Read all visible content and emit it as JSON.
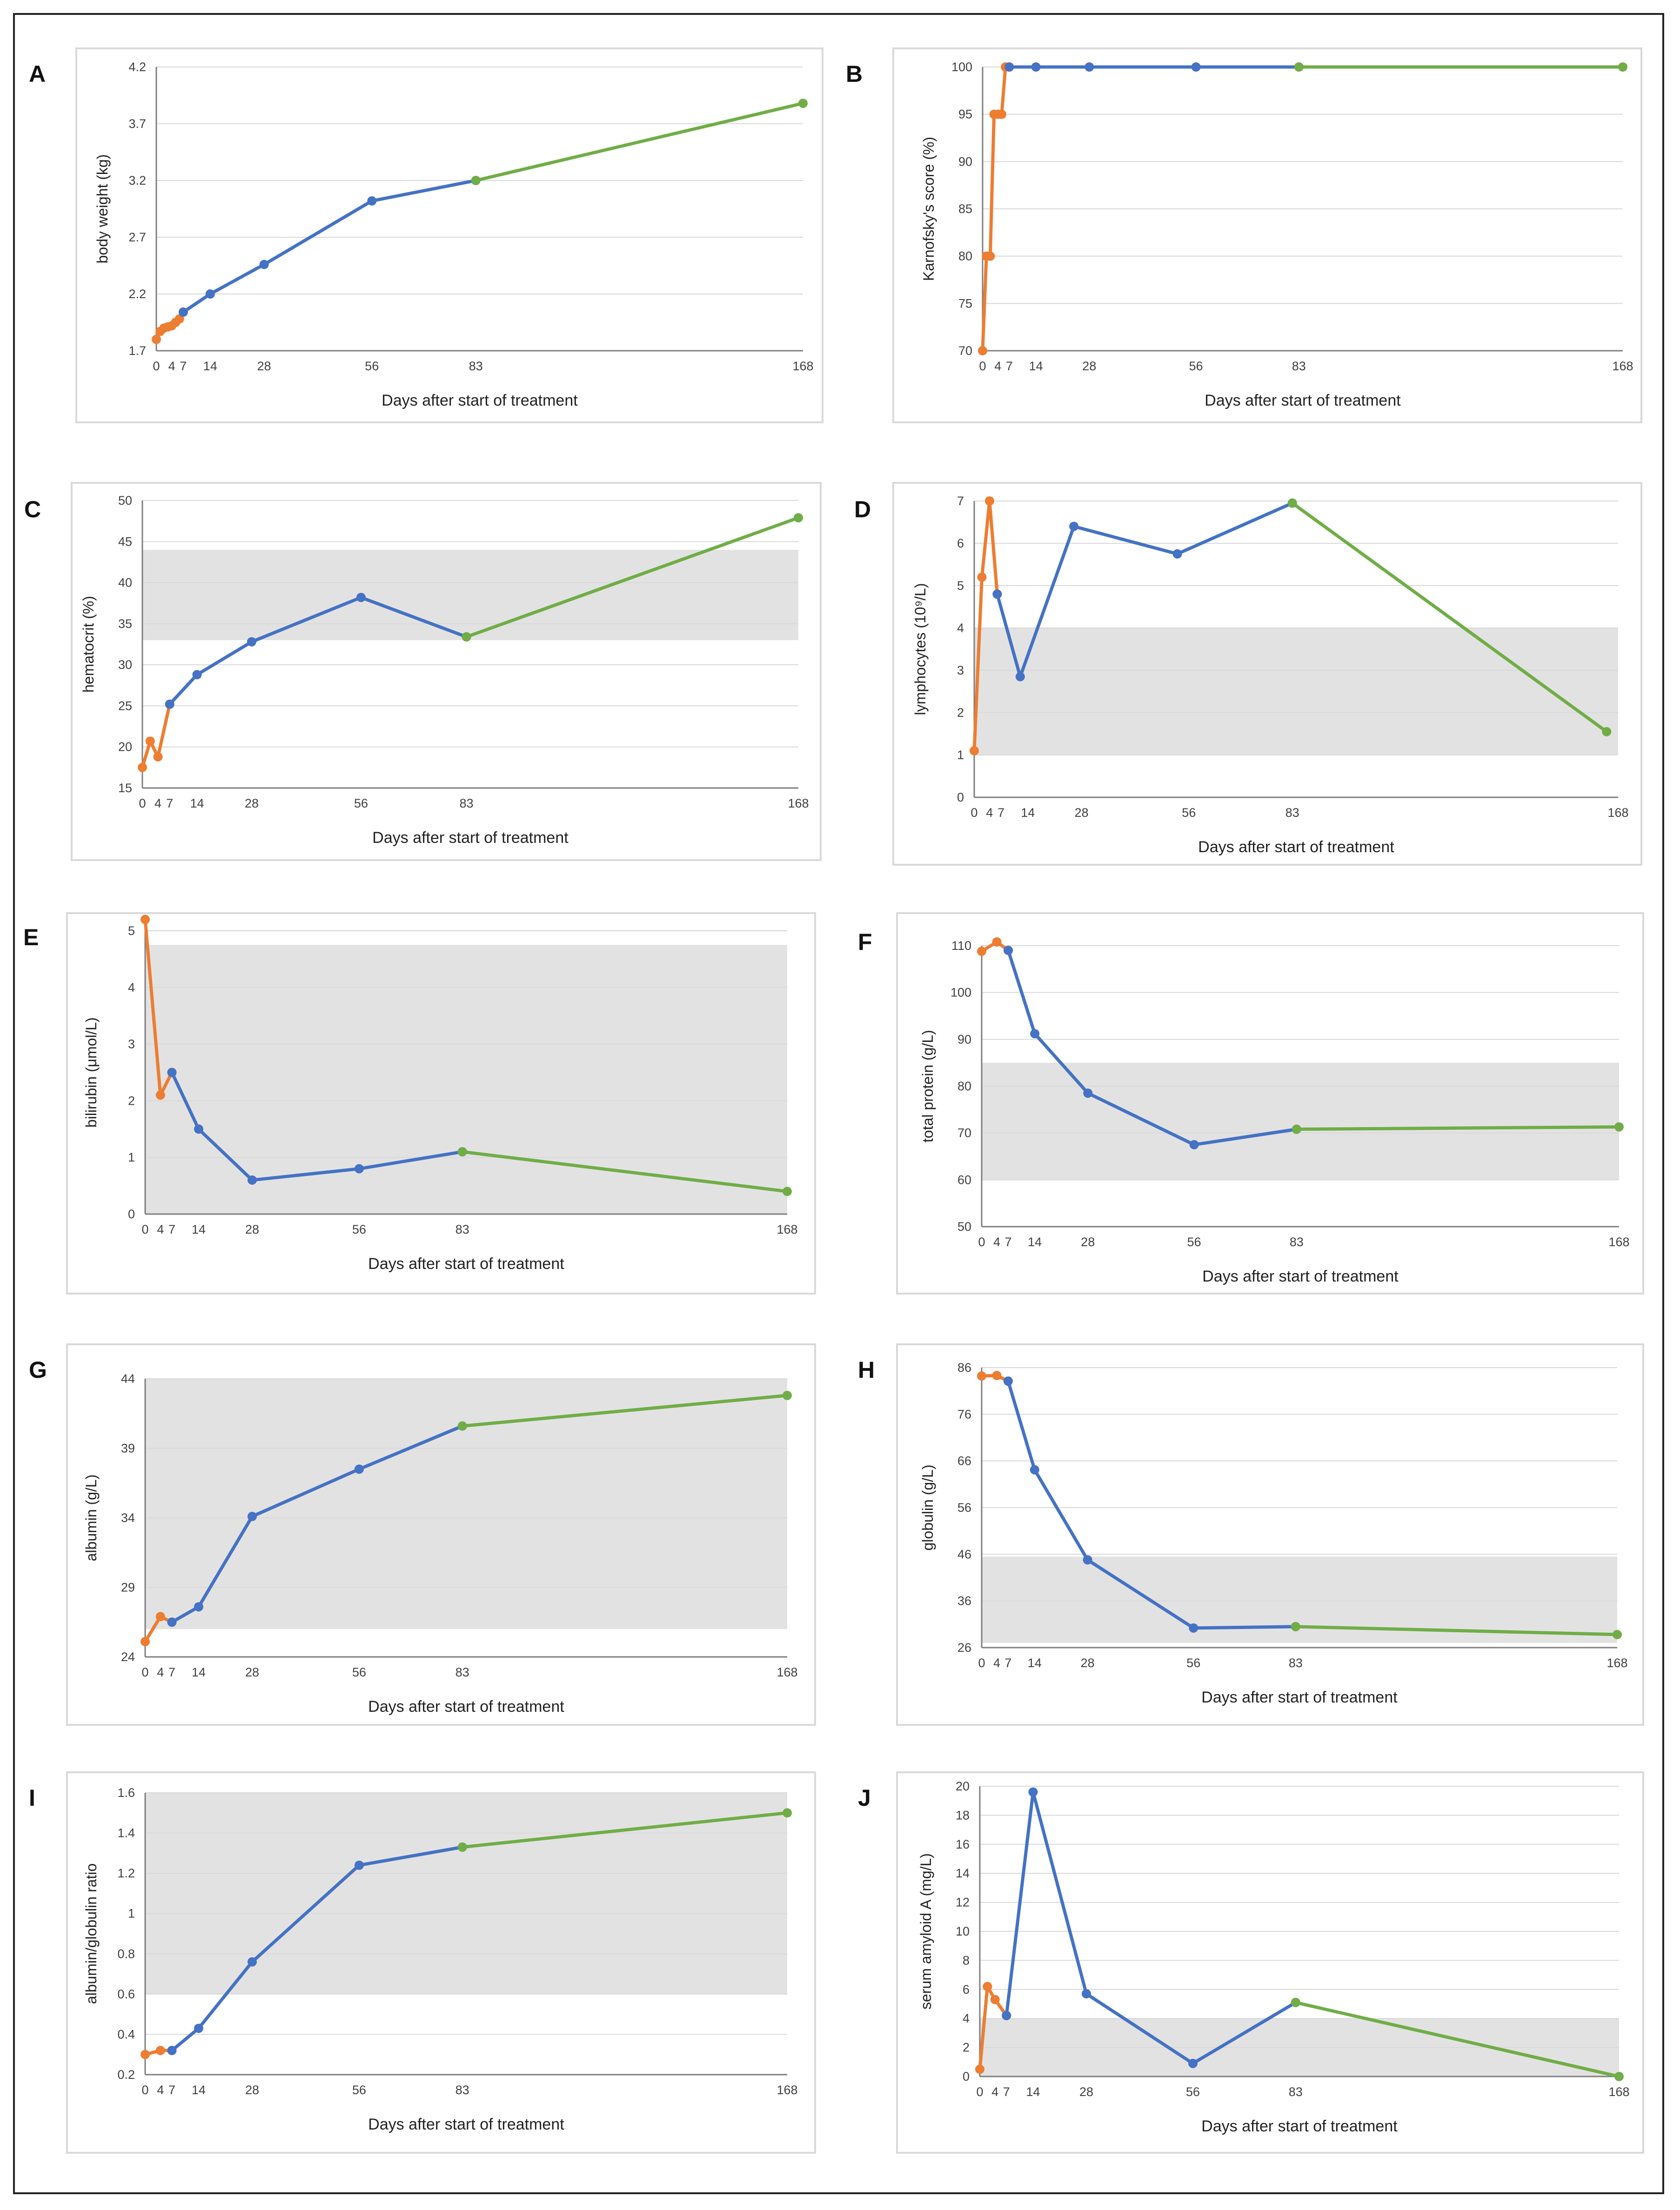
{
  "colors": {
    "early": "#ED7D31",
    "mid": "#4472C4",
    "late": "#70AD47",
    "band": "#E3E2E3",
    "grid": "#D9D9D9"
  },
  "chart_data": [
    {
      "id": "A",
      "type": "line",
      "letter": "A",
      "ylabel": "body weight (kg)",
      "xlabel": "Days after start of treatment",
      "ylim": [
        1.7,
        4.2
      ],
      "yticks": [
        "1.7",
        "2.2",
        "2.7",
        "3.2",
        "3.7",
        "4.2"
      ],
      "xtick_values": [
        0,
        4,
        7,
        14,
        28,
        56,
        83,
        168
      ],
      "xtick_labels": [
        "0",
        "4",
        "7",
        "14",
        "28",
        "56",
        "83",
        "168"
      ],
      "xmax": 168,
      "reference_range": null,
      "series": [
        {
          "name": "early",
          "color": "early",
          "x": [
            0,
            1,
            2,
            3,
            4,
            5,
            6,
            7
          ],
          "y": [
            1.8,
            1.87,
            1.9,
            1.91,
            1.92,
            1.95,
            1.98,
            2.04
          ]
        },
        {
          "name": "mid",
          "color": "mid",
          "x": [
            7,
            14,
            28,
            56,
            83
          ],
          "y": [
            2.04,
            2.2,
            2.46,
            3.02,
            3.2
          ]
        },
        {
          "name": "late",
          "color": "late",
          "x": [
            83,
            168
          ],
          "y": [
            3.2,
            3.88
          ]
        }
      ]
    },
    {
      "id": "B",
      "type": "line",
      "letter": "B",
      "ylabel": "Karnofsky's score (%)",
      "xlabel": "Days after start of treatment",
      "ylim": [
        70,
        100
      ],
      "yticks": [
        "70",
        "75",
        "80",
        "85",
        "90",
        "95",
        "100"
      ],
      "xtick_values": [
        0,
        4,
        7,
        14,
        28,
        56,
        83,
        168
      ],
      "xtick_labels": [
        "0",
        "4",
        "7",
        "14",
        "28",
        "56",
        "83",
        "168"
      ],
      "xmax": 168,
      "reference_range": null,
      "series": [
        {
          "name": "early",
          "color": "early",
          "x": [
            0,
            1,
            2,
            3,
            4,
            5,
            6,
            7
          ],
          "y": [
            70,
            80,
            80,
            95,
            95,
            95,
            100,
            100
          ]
        },
        {
          "name": "mid",
          "color": "mid",
          "x": [
            7,
            14,
            28,
            56,
            83
          ],
          "y": [
            100,
            100,
            100,
            100,
            100
          ]
        },
        {
          "name": "late",
          "color": "late",
          "x": [
            83,
            168
          ],
          "y": [
            100,
            100
          ]
        }
      ]
    },
    {
      "id": "C",
      "type": "line",
      "letter": "C",
      "ylabel": "hematocrit (%)",
      "xlabel": "Days after start of treatment",
      "ylim": [
        15,
        50
      ],
      "yticks": [
        "15",
        "20",
        "25",
        "30",
        "35",
        "40",
        "45",
        "50"
      ],
      "xtick_values": [
        0,
        4,
        7,
        14,
        28,
        56,
        83,
        168
      ],
      "xtick_labels": [
        "0",
        "4",
        "7",
        "14",
        "28",
        "56",
        "83",
        "168"
      ],
      "xmax": 168,
      "reference_range": [
        33,
        44
      ],
      "series": [
        {
          "name": "early",
          "color": "early",
          "x": [
            0,
            2,
            4,
            7
          ],
          "y": [
            17.5,
            20.7,
            18.8,
            25.2
          ]
        },
        {
          "name": "mid",
          "color": "mid",
          "x": [
            7,
            14,
            28,
            56,
            83
          ],
          "y": [
            25.2,
            28.8,
            32.8,
            38.2,
            33.4
          ]
        },
        {
          "name": "late",
          "color": "late",
          "x": [
            83,
            168
          ],
          "y": [
            33.4,
            47.9
          ]
        }
      ]
    },
    {
      "id": "D",
      "type": "line",
      "letter": "D",
      "ylabel": "lymphocytes (10⁹/L)",
      "xlabel": "Days after start of treatment",
      "ylim": [
        0,
        7
      ],
      "yticks": [
        "0",
        "1",
        "2",
        "3",
        "4",
        "5",
        "6",
        "7"
      ],
      "xtick_values": [
        0,
        4,
        7,
        14,
        28,
        56,
        83,
        168
      ],
      "xtick_labels": [
        "0",
        "4",
        "7",
        "14",
        "28",
        "56",
        "83",
        "168"
      ],
      "xmax": 168,
      "reference_range": [
        1,
        4
      ],
      "series": [
        {
          "name": "early",
          "color": "early",
          "x": [
            0,
            2,
            4,
            6
          ],
          "y": [
            1.1,
            5.2,
            7.0,
            4.8
          ]
        },
        {
          "name": "mid",
          "color": "mid",
          "x": [
            6,
            12,
            26,
            53,
            83
          ],
          "y": [
            4.8,
            2.85,
            6.4,
            5.75,
            6.95
          ]
        },
        {
          "name": "late",
          "color": "late",
          "x": [
            83,
            165
          ],
          "y": [
            6.95,
            1.55
          ]
        }
      ]
    },
    {
      "id": "E",
      "type": "line",
      "letter": "E",
      "ylabel": "bilirubin (μmol/L)",
      "xlabel": "Days after start of treatment",
      "ylim": [
        0,
        5
      ],
      "yticks": [
        "0",
        "1",
        "2",
        "3",
        "4",
        "5"
      ],
      "xtick_values": [
        0,
        4,
        7,
        14,
        28,
        56,
        83,
        168
      ],
      "xtick_labels": [
        "0",
        "4",
        "7",
        "14",
        "28",
        "56",
        "83",
        "168"
      ],
      "xmax": 168,
      "reference_range": [
        0,
        4.75
      ],
      "series": [
        {
          "name": "early",
          "color": "early",
          "x": [
            0,
            4,
            7
          ],
          "y": [
            5.2,
            2.1,
            2.5
          ]
        },
        {
          "name": "mid",
          "color": "mid",
          "x": [
            7,
            14,
            28,
            56,
            83
          ],
          "y": [
            2.5,
            1.5,
            0.6,
            0.8,
            1.1
          ]
        },
        {
          "name": "late",
          "color": "late",
          "x": [
            83,
            168
          ],
          "y": [
            1.1,
            0.4
          ]
        }
      ]
    },
    {
      "id": "F",
      "type": "line",
      "letter": "F",
      "ylabel": "total protein (g/L)",
      "xlabel": "Days after start of treatment",
      "ylim": [
        50,
        110
      ],
      "yticks": [
        "50",
        "60",
        "70",
        "80",
        "90",
        "100",
        "110"
      ],
      "xtick_values": [
        0,
        4,
        7,
        14,
        28,
        56,
        83,
        168
      ],
      "xtick_labels": [
        "0",
        "4",
        "7",
        "14",
        "28",
        "56",
        "83",
        "168"
      ],
      "xmax": 168,
      "reference_range": [
        60,
        85
      ],
      "series": [
        {
          "name": "early",
          "color": "early",
          "x": [
            0,
            4,
            7
          ],
          "y": [
            108.8,
            110.8,
            109
          ]
        },
        {
          "name": "mid",
          "color": "mid",
          "x": [
            7,
            14,
            28,
            56,
            83
          ],
          "y": [
            109,
            91.2,
            78.5,
            67.5,
            70.8
          ]
        },
        {
          "name": "late",
          "color": "late",
          "x": [
            83,
            168
          ],
          "y": [
            70.8,
            71.3
          ]
        }
      ]
    },
    {
      "id": "G",
      "type": "line",
      "letter": "G",
      "ylabel": "albumin (g/L)",
      "xlabel": "Days after start of treatment",
      "ylim": [
        24,
        44
      ],
      "yticks": [
        "24",
        "29",
        "34",
        "39",
        "44"
      ],
      "xtick_values": [
        0,
        4,
        7,
        14,
        28,
        56,
        83,
        168
      ],
      "xtick_labels": [
        "0",
        "4",
        "7",
        "14",
        "28",
        "56",
        "83",
        "168"
      ],
      "xmax": 168,
      "reference_range": [
        26,
        45
      ],
      "series": [
        {
          "name": "early",
          "color": "early",
          "x": [
            0,
            4,
            7
          ],
          "y": [
            25.1,
            26.9,
            26.5
          ]
        },
        {
          "name": "mid",
          "color": "mid",
          "x": [
            7,
            14,
            28,
            56,
            83
          ],
          "y": [
            26.5,
            27.6,
            34.1,
            37.5,
            40.6
          ]
        },
        {
          "name": "late",
          "color": "late",
          "x": [
            83,
            168
          ],
          "y": [
            40.6,
            42.8
          ]
        }
      ]
    },
    {
      "id": "H",
      "type": "line",
      "letter": "H",
      "ylabel": "globulin (g/L)",
      "xlabel": "Days after start of treatment",
      "ylim": [
        26,
        86
      ],
      "yticks": [
        "26",
        "36",
        "46",
        "56",
        "66",
        "76",
        "86"
      ],
      "xtick_values": [
        0,
        4,
        7,
        14,
        28,
        56,
        83,
        168
      ],
      "xtick_labels": [
        "0",
        "4",
        "7",
        "14",
        "28",
        "56",
        "83",
        "168"
      ],
      "xmax": 168,
      "reference_range": [
        27,
        45.5
      ],
      "series": [
        {
          "name": "early",
          "color": "early",
          "x": [
            0,
            4,
            7
          ],
          "y": [
            84.2,
            84.3,
            83.1
          ]
        },
        {
          "name": "mid",
          "color": "mid",
          "x": [
            7,
            14,
            28,
            56,
            83
          ],
          "y": [
            83.1,
            64.1,
            44.8,
            30.2,
            30.5
          ]
        },
        {
          "name": "late",
          "color": "late",
          "x": [
            83,
            168
          ],
          "y": [
            30.5,
            28.8
          ]
        }
      ]
    },
    {
      "id": "I",
      "type": "line",
      "letter": "I",
      "ylabel": "albumin/globulin ratio",
      "xlabel": "Days after start of treatment",
      "ylim": [
        0.2,
        1.6
      ],
      "yticks": [
        "0.2",
        "0.4",
        "0.6",
        "0.8",
        "1",
        "1.2",
        "1.4",
        "1.6"
      ],
      "xtick_values": [
        0,
        4,
        7,
        14,
        28,
        56,
        83,
        168
      ],
      "xtick_labels": [
        "0",
        "4",
        "7",
        "14",
        "28",
        "56",
        "83",
        "168"
      ],
      "xmax": 168,
      "reference_range": [
        0.6,
        1.6
      ],
      "series": [
        {
          "name": "early",
          "color": "early",
          "x": [
            0,
            4,
            7
          ],
          "y": [
            0.3,
            0.32,
            0.32
          ]
        },
        {
          "name": "mid",
          "color": "mid",
          "x": [
            7,
            14,
            28,
            56,
            83
          ],
          "y": [
            0.32,
            0.43,
            0.76,
            1.24,
            1.33
          ]
        },
        {
          "name": "late",
          "color": "late",
          "x": [
            83,
            168
          ],
          "y": [
            1.33,
            1.5
          ]
        }
      ]
    },
    {
      "id": "J",
      "type": "line",
      "letter": "J",
      "ylabel": "serum amyloid A (mg/L)",
      "xlabel": "Days after start of treatment",
      "ylim": [
        0,
        20
      ],
      "yticks": [
        "0",
        "2",
        "4",
        "6",
        "8",
        "10",
        "12",
        "14",
        "16",
        "18",
        "20"
      ],
      "xtick_values": [
        0,
        4,
        7,
        14,
        28,
        56,
        83,
        168
      ],
      "xtick_labels": [
        "0",
        "4",
        "7",
        "14",
        "28",
        "56",
        "83",
        "168"
      ],
      "xmax": 168,
      "reference_range": [
        0,
        4
      ],
      "series": [
        {
          "name": "early",
          "color": "early",
          "x": [
            0,
            2,
            4,
            7
          ],
          "y": [
            0.5,
            6.2,
            5.3,
            4.2
          ]
        },
        {
          "name": "mid",
          "color": "mid",
          "x": [
            7,
            14,
            28,
            56,
            83
          ],
          "y": [
            4.2,
            19.6,
            5.7,
            0.9,
            5.1
          ]
        },
        {
          "name": "late",
          "color": "late",
          "x": [
            83,
            168
          ],
          "y": [
            5.1,
            0
          ]
        }
      ]
    }
  ]
}
